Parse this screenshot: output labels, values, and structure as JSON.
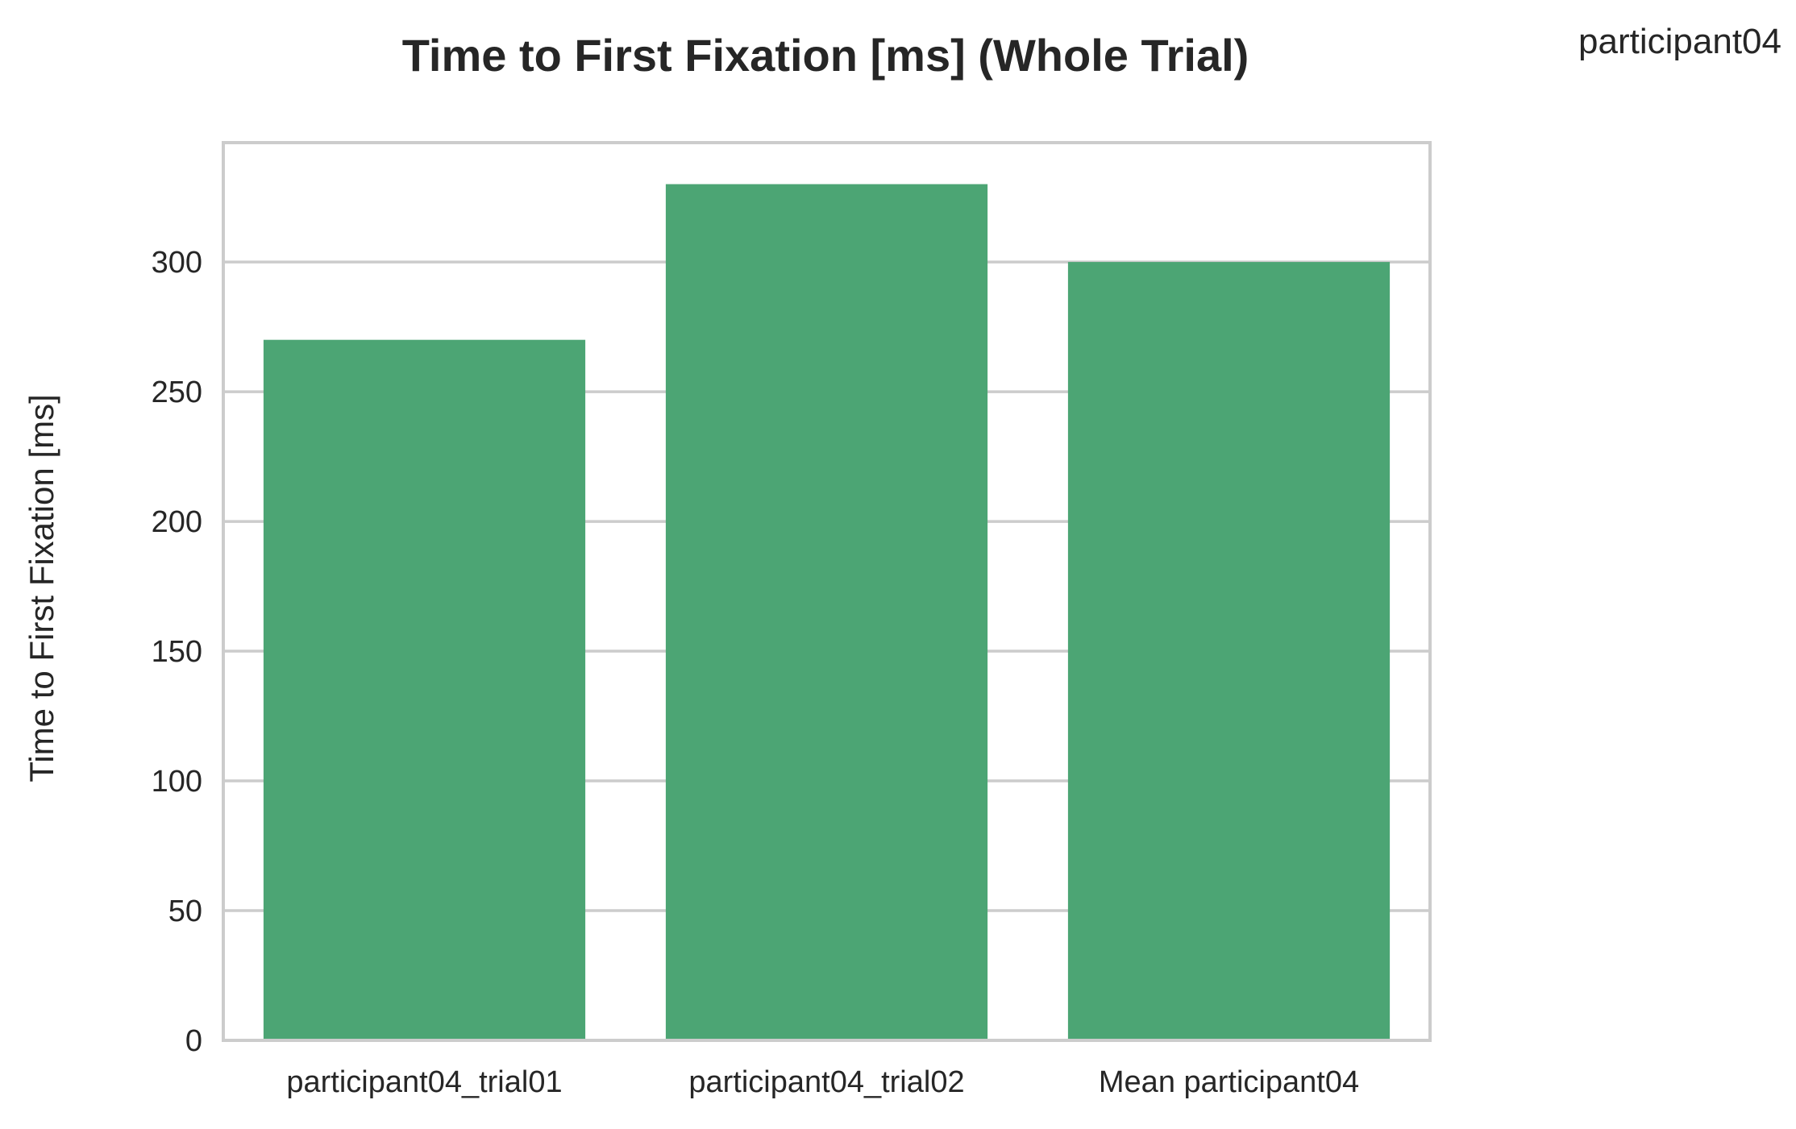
{
  "chart_data": {
    "type": "bar",
    "title": "Time to First Fixation [ms] (Whole Trial)",
    "corner_label": "participant04",
    "xlabel": "",
    "ylabel": "Time to First Fixation [ms]",
    "categories": [
      "participant04_trial01",
      "participant04_trial02",
      "Mean participant04"
    ],
    "values": [
      270,
      330,
      300
    ],
    "ylim": [
      0,
      346
    ],
    "yticks": [
      "0",
      "50",
      "100",
      "150",
      "200",
      "250",
      "300"
    ],
    "grid": true,
    "legend": "none",
    "colors": {
      "bar": "#4ca574",
      "grid": "#cccccc",
      "axes_border": "#cccccc",
      "text": "#262626"
    }
  }
}
